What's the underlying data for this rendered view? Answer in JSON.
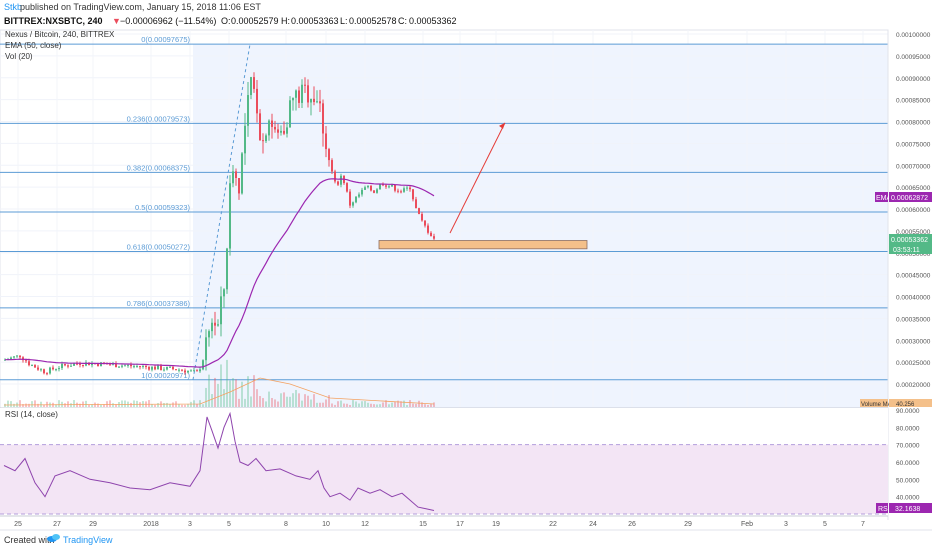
{
  "header": {
    "author": "Stkb",
    "publish_text": "published on TradingView.com, January 15, 2018 11:06 EST",
    "symbol": "BITTREX:NXSBTC, 240",
    "change_arrow": "▼",
    "change_text": "−0.00006962 (−11.54%)",
    "ohlc": {
      "o_label": "O:",
      "o": "0.00052579",
      "h_label": "H:",
      "h": "0.00053363",
      "l_label": "L:",
      "l": "0.00052578",
      "c_label": "C:",
      "c": "0.00053362"
    }
  },
  "legend": {
    "instrument": "Nexus / Bitcoin, 240, BITTREX",
    "ema": "EMA (50, close)",
    "vol": "Vol (20)",
    "rsi": "RSI (14, close)"
  },
  "badges": {
    "ema_label": "EMA",
    "ema_value": "0.00062872",
    "price_value": "0.00053362",
    "countdown": "03:53:11",
    "volume_label": "Volume MA",
    "volume_value": "40.256",
    "rsi_label": "RSI",
    "rsi_value": "32.1638"
  },
  "footer": {
    "created_with": "Created with",
    "brand": "TradingView"
  },
  "colors": {
    "up": "#53b987",
    "down": "#eb4d5c",
    "ema": "#9c27b0",
    "fib": "#5b9bd5",
    "zone_fill": "#f4c08a",
    "arrow": "#e53935",
    "rsi_line": "#8e44ad",
    "rsi_band": "#f3e5f5",
    "highlight": "#e8f0fe"
  },
  "chart_data": [
    {
      "type": "candlestick",
      "title": "Nexus / Bitcoin, 240, BITTREX",
      "price_axis_ticks": [
        "0.00100000",
        "0.00095000",
        "0.00090000",
        "0.00085000",
        "0.00080000",
        "0.00075000",
        "0.00070000",
        "0.00065000",
        "0.00060000",
        "0.00055000",
        "0.00050000",
        "0.00045000",
        "0.00040000",
        "0.00035000",
        "0.00030000",
        "0.00025000",
        "0.00020000"
      ],
      "x_axis_ticks": [
        "25",
        "27",
        "29",
        "2018",
        "3",
        "5",
        "8",
        "10",
        "12",
        "15",
        "17",
        "19",
        "22",
        "24",
        "26",
        "29",
        "Feb",
        "3",
        "5",
        "7"
      ],
      "fib_levels": [
        {
          "ratio": "0",
          "label": "0(0.00097675)",
          "price": 0.00097675
        },
        {
          "ratio": "0.236",
          "label": "0.236(0.00079573)",
          "price": 0.00079573
        },
        {
          "ratio": "0.382",
          "label": "0.382(0.00068375)",
          "price": 0.00068375
        },
        {
          "ratio": "0.5",
          "label": "0.5(0.00059323)",
          "price": 0.00059323
        },
        {
          "ratio": "0.618",
          "label": "0.618(0.00050272)",
          "price": 0.00050272
        },
        {
          "ratio": "0.786",
          "label": "0.786(0.00037386)",
          "price": 0.00037386
        },
        {
          "ratio": "1",
          "label": "1(0.00020971)",
          "price": 0.00020971
        }
      ],
      "support_zone": {
        "price_low": 0.000509,
        "price_high": 0.000528
      },
      "projection_arrow": {
        "from_price": 0.000545,
        "to_price": 0.000797
      },
      "ema_last": 0.00062872,
      "last_price": 0.00053362
    },
    {
      "type": "line",
      "title": "RSI (14, close)",
      "rsi_axis_ticks": [
        "90.0000",
        "80.0000",
        "70.0000",
        "60.0000",
        "50.0000",
        "40.0000"
      ],
      "overbought": 70,
      "oversold": 30,
      "last_value": 32.1638
    }
  ]
}
